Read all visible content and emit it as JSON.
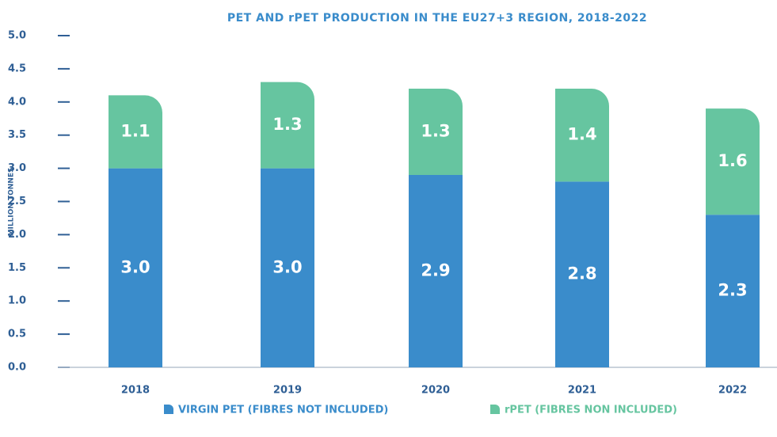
{
  "chart_data": {
    "type": "bar",
    "stacked": true,
    "title": "PET AND rPET PRODUCTION IN THE EU27+3 REGION, 2018-2022",
    "y_label": "MILLION TONNES",
    "categories": [
      "2018",
      "2019",
      "2020",
      "2021",
      "2022"
    ],
    "series": [
      {
        "name": "VIRGIN PET (FIBRES NOT INCLUDED)",
        "color": "#3a8ccb",
        "values": [
          3.0,
          3.0,
          2.9,
          2.8,
          2.3
        ],
        "value_labels": [
          "3.0",
          "3.0",
          "2.9",
          "2.8",
          "2.3"
        ]
      },
      {
        "name": "rPET (FIBRES NON INCLUDED)",
        "color": "#66c5a0",
        "values": [
          1.1,
          1.3,
          1.3,
          1.4,
          1.6
        ],
        "value_labels": [
          "1.1",
          "1.3",
          "1.3",
          "1.4",
          "1.6"
        ]
      }
    ],
    "ylim": [
      0,
      5
    ],
    "yticks": [
      {
        "value": 0,
        "label": "0.0"
      },
      {
        "value": 0.5,
        "label": "0.5"
      },
      {
        "value": 1,
        "label": "1.0"
      },
      {
        "value": 1.5,
        "label": "1.5"
      },
      {
        "value": 2,
        "label": "2.0"
      },
      {
        "value": 2.5,
        "label": "2.5"
      },
      {
        "value": 3,
        "label": "3.0"
      },
      {
        "value": 3.5,
        "label": "3.5"
      },
      {
        "value": 4,
        "label": "4.0"
      },
      {
        "value": 4.5,
        "label": "4.5"
      },
      {
        "value": 5,
        "label": "5.0"
      }
    ],
    "legend": "bottom"
  }
}
